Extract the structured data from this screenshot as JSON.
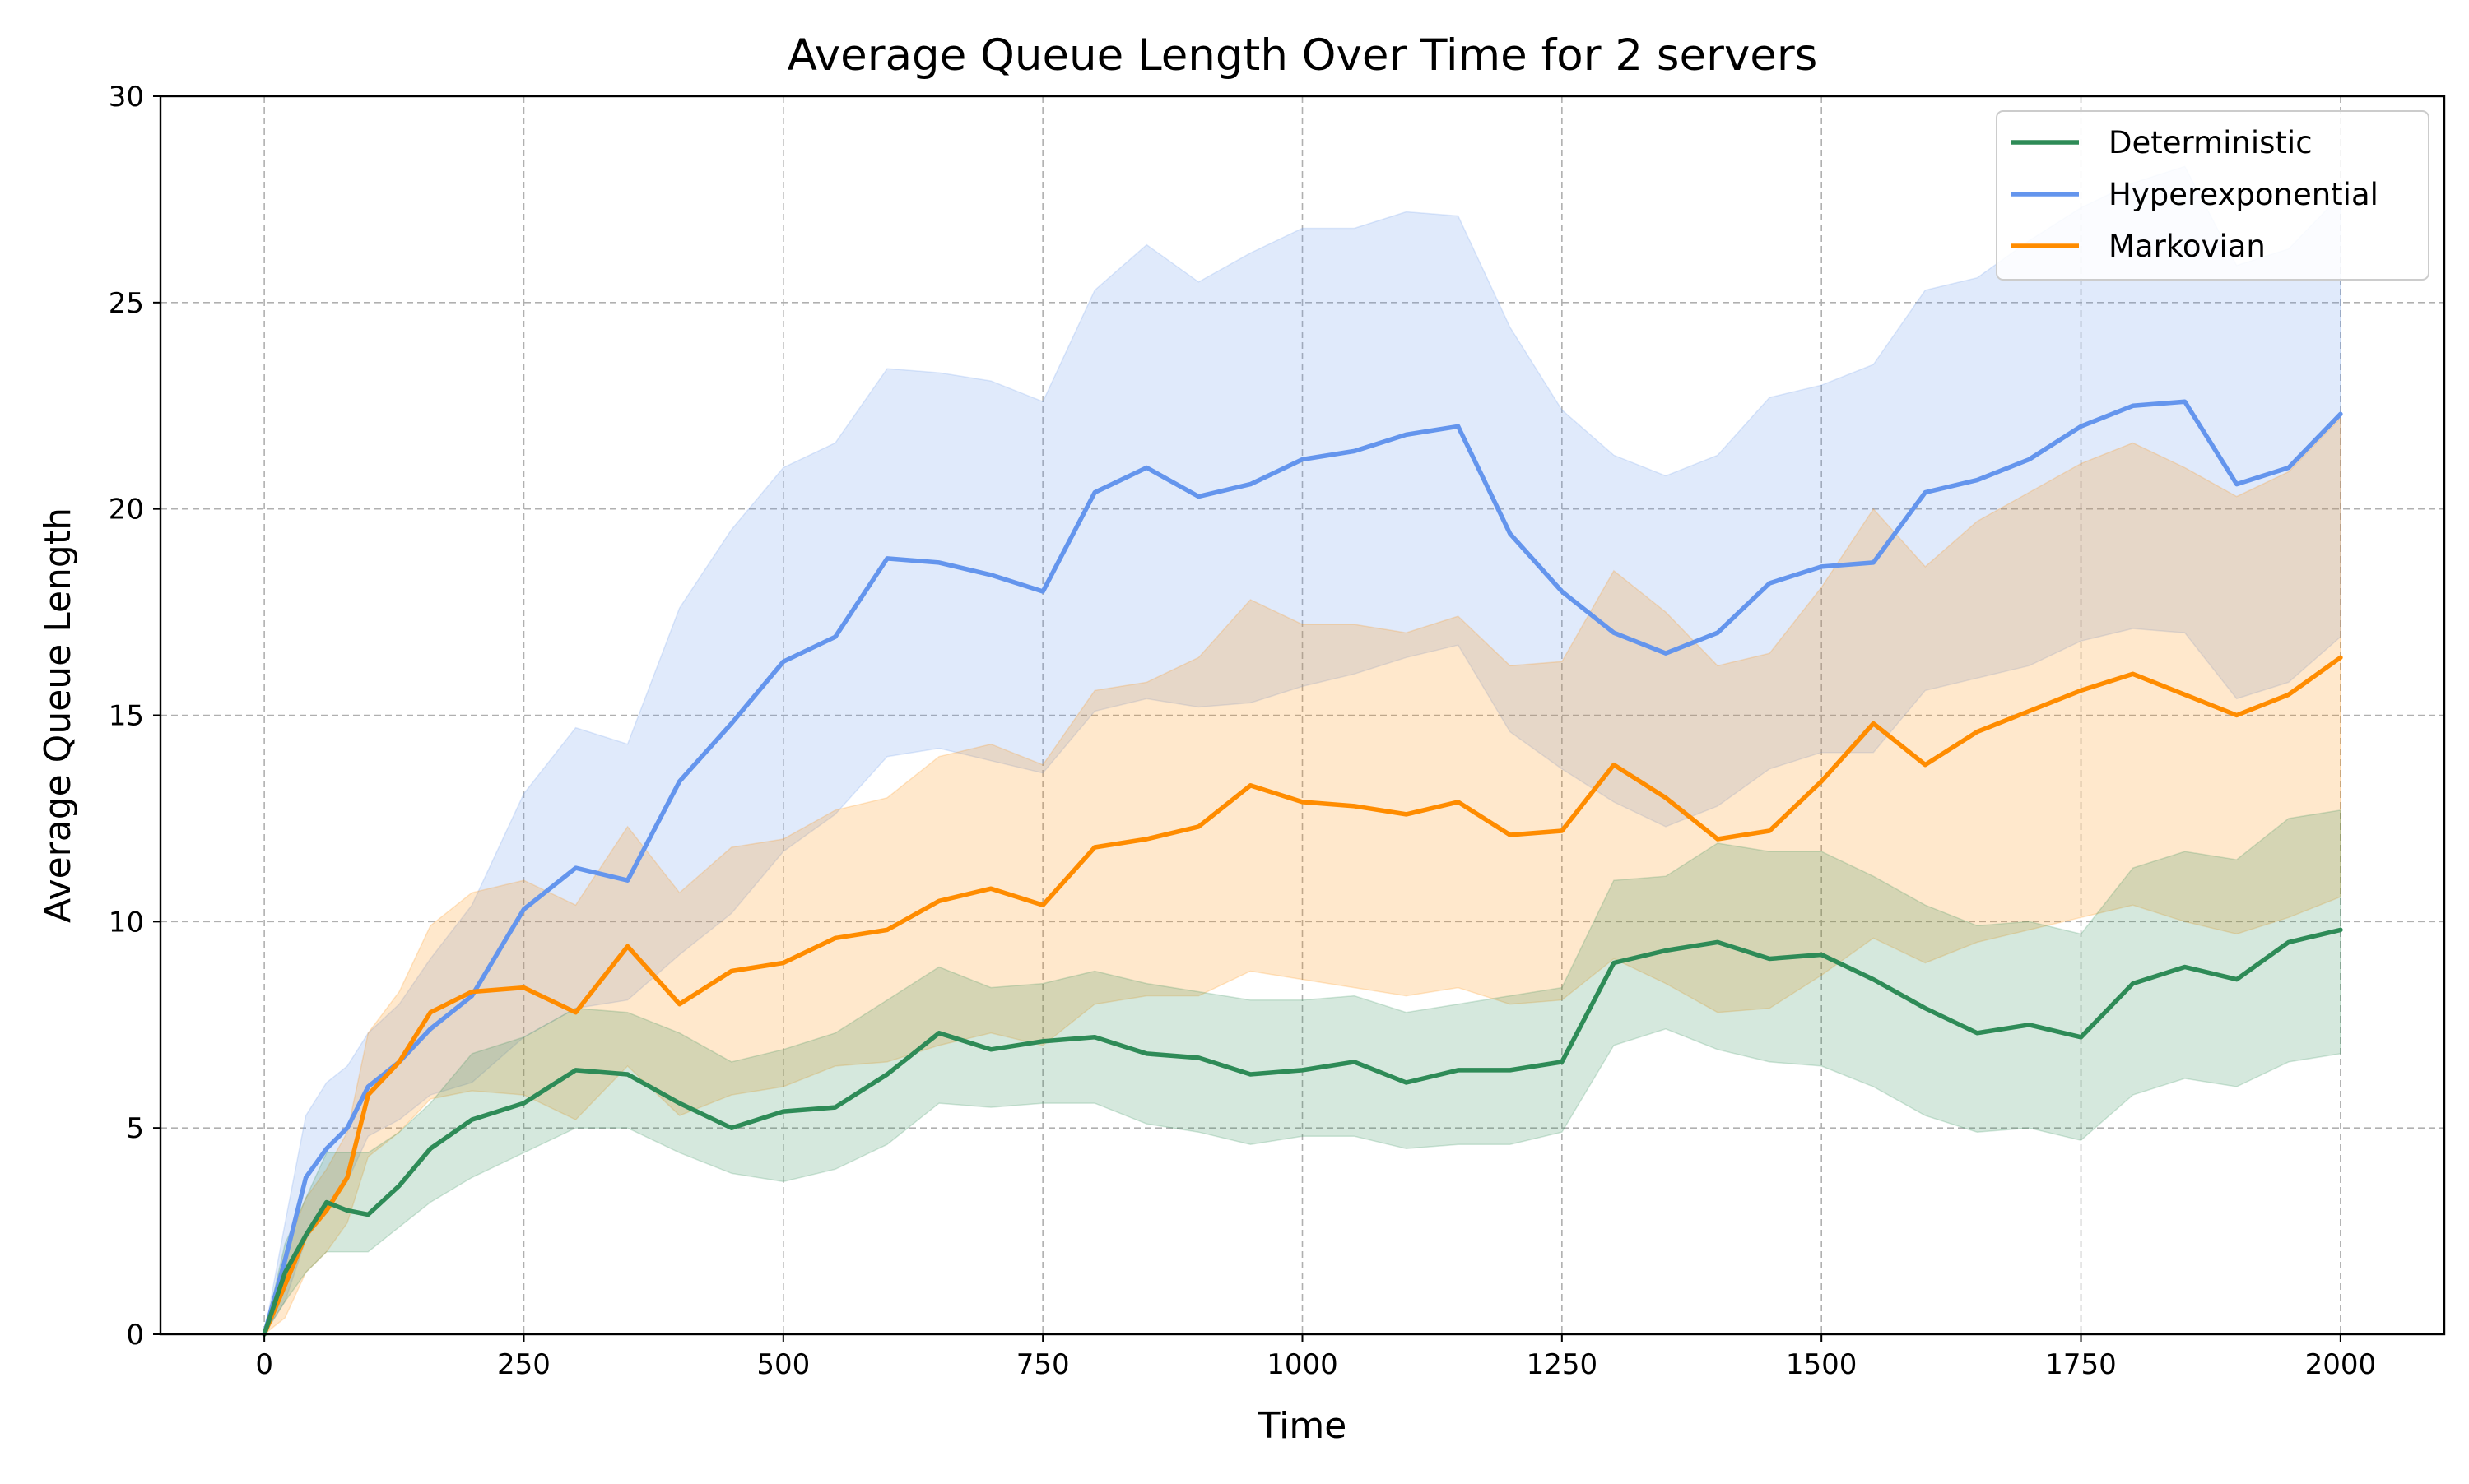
{
  "chart_data": {
    "type": "line",
    "title": "Average Queue Length Over Time for 2 servers",
    "xlabel": "Time",
    "ylabel": "Average Queue Length",
    "xlim": [
      -100,
      2100
    ],
    "ylim": [
      0,
      30
    ],
    "xticks": [
      0,
      250,
      500,
      750,
      1000,
      1250,
      1500,
      1750,
      2000
    ],
    "yticks": [
      0,
      5,
      10,
      15,
      20,
      25,
      30
    ],
    "grid": true,
    "grid_style": "dashed",
    "legend_position": "top-right",
    "x": [
      0,
      20,
      40,
      60,
      80,
      100,
      130,
      160,
      200,
      250,
      300,
      350,
      400,
      450,
      500,
      550,
      600,
      650,
      700,
      750,
      800,
      850,
      900,
      950,
      1000,
      1050,
      1100,
      1150,
      1200,
      1250,
      1300,
      1350,
      1400,
      1450,
      1500,
      1550,
      1600,
      1650,
      1700,
      1750,
      1800,
      1850,
      1900,
      1950,
      2000
    ],
    "series": [
      {
        "name": "Deterministic",
        "color": "#2e8b57",
        "values": [
          0,
          1.5,
          2.4,
          3.2,
          3.0,
          2.9,
          3.6,
          4.5,
          5.2,
          5.6,
          6.4,
          6.3,
          5.6,
          5.0,
          5.4,
          5.5,
          6.3,
          7.3,
          6.9,
          7.1,
          7.2,
          6.8,
          6.7,
          6.3,
          6.4,
          6.6,
          6.1,
          6.4,
          6.4,
          6.6,
          9.0,
          9.3,
          9.5,
          9.1,
          9.2,
          8.6,
          7.9,
          7.3,
          7.5,
          7.2,
          8.5,
          8.9,
          8.6,
          9.5,
          9.8
        ],
        "lower": [
          0,
          0.8,
          1.5,
          2.0,
          2.0,
          2.0,
          2.6,
          3.2,
          3.8,
          4.4,
          5.0,
          5.0,
          4.4,
          3.9,
          3.7,
          4.0,
          4.6,
          5.6,
          5.5,
          5.6,
          5.6,
          5.1,
          4.9,
          4.6,
          4.8,
          4.8,
          4.5,
          4.6,
          4.6,
          4.9,
          7.0,
          7.4,
          6.9,
          6.6,
          6.5,
          6.0,
          5.3,
          4.9,
          5.0,
          4.7,
          5.8,
          6.2,
          6.0,
          6.6,
          6.8
        ],
        "upper": [
          0,
          2.2,
          3.3,
          4.4,
          4.4,
          4.4,
          4.9,
          5.6,
          6.8,
          7.2,
          7.9,
          7.8,
          7.3,
          6.6,
          6.9,
          7.3,
          8.1,
          8.9,
          8.4,
          8.5,
          8.8,
          8.5,
          8.3,
          8.1,
          8.1,
          8.2,
          7.8,
          8.0,
          8.2,
          8.4,
          11.0,
          11.1,
          11.9,
          11.7,
          11.7,
          11.1,
          10.4,
          9.9,
          10.0,
          9.7,
          11.3,
          11.7,
          11.5,
          12.5,
          12.7
        ]
      },
      {
        "name": "Hyperexponential",
        "color": "#6495ed",
        "values": [
          0,
          1.8,
          3.8,
          4.5,
          5.0,
          6.0,
          6.6,
          7.4,
          8.2,
          10.3,
          11.3,
          11.0,
          13.4,
          14.8,
          16.3,
          16.9,
          18.8,
          18.7,
          18.4,
          18.0,
          20.4,
          21.0,
          20.3,
          20.6,
          21.2,
          21.4,
          21.8,
          22.0,
          19.4,
          18.0,
          17.0,
          16.5,
          17.0,
          18.2,
          18.6,
          18.7,
          20.4,
          20.7,
          21.2,
          22.0,
          22.5,
          22.6,
          20.6,
          21.0,
          22.3
        ],
        "lower": [
          0,
          0.8,
          2.3,
          3.0,
          3.7,
          4.8,
          5.2,
          5.8,
          6.1,
          7.2,
          7.9,
          8.1,
          9.2,
          10.2,
          11.7,
          12.6,
          14.0,
          14.2,
          13.9,
          13.6,
          15.1,
          15.4,
          15.2,
          15.3,
          15.7,
          16.0,
          16.4,
          16.7,
          14.6,
          13.7,
          12.9,
          12.3,
          12.8,
          13.7,
          14.1,
          14.1,
          15.6,
          15.9,
          16.2,
          16.8,
          17.1,
          17.0,
          15.4,
          15.8,
          16.9
        ],
        "upper": [
          0,
          2.7,
          5.3,
          6.1,
          6.5,
          7.3,
          8.0,
          9.1,
          10.4,
          13.1,
          14.7,
          14.3,
          17.6,
          19.5,
          21.0,
          21.6,
          23.4,
          23.3,
          23.1,
          22.6,
          25.3,
          26.4,
          25.5,
          26.2,
          26.8,
          26.8,
          27.2,
          27.1,
          24.4,
          22.4,
          21.3,
          20.8,
          21.3,
          22.7,
          23.0,
          23.5,
          25.3,
          25.6,
          26.5,
          27.3,
          27.9,
          28.3,
          25.9,
          26.3,
          27.6
        ]
      },
      {
        "name": "Markovian",
        "color": "#ff8c00",
        "values": [
          0,
          1.2,
          2.4,
          3.0,
          3.8,
          5.8,
          6.6,
          7.8,
          8.3,
          8.4,
          7.8,
          9.4,
          8.0,
          8.8,
          9.0,
          9.6,
          9.8,
          10.5,
          10.8,
          10.4,
          11.8,
          12.0,
          12.3,
          13.3,
          12.9,
          12.8,
          12.6,
          12.9,
          12.1,
          12.2,
          13.8,
          13.0,
          12.0,
          12.2,
          13.4,
          14.8,
          13.8,
          14.6,
          15.1,
          15.6,
          16.0,
          15.5,
          15.0,
          15.5,
          16.4
        ],
        "lower": [
          0,
          0.4,
          1.5,
          2.0,
          2.7,
          4.3,
          4.9,
          5.7,
          5.9,
          5.8,
          5.2,
          6.5,
          5.3,
          5.8,
          6.0,
          6.5,
          6.6,
          7.0,
          7.3,
          7.0,
          8.0,
          8.2,
          8.2,
          8.8,
          8.6,
          8.4,
          8.2,
          8.4,
          8.0,
          8.1,
          9.1,
          8.5,
          7.8,
          7.9,
          8.7,
          9.6,
          9.0,
          9.5,
          9.8,
          10.1,
          10.4,
          10.0,
          9.7,
          10.1,
          10.6
        ],
        "upper": [
          0,
          2.0,
          3.3,
          4.0,
          4.9,
          7.3,
          8.3,
          9.9,
          10.7,
          11.0,
          10.4,
          12.3,
          10.7,
          11.8,
          12.0,
          12.7,
          13.0,
          14.0,
          14.3,
          13.8,
          15.6,
          15.8,
          16.4,
          17.8,
          17.2,
          17.2,
          17.0,
          17.4,
          16.2,
          16.3,
          18.5,
          17.5,
          16.2,
          16.5,
          18.1,
          20.0,
          18.6,
          19.7,
          20.4,
          21.1,
          21.6,
          21.0,
          20.3,
          20.9,
          22.2
        ]
      }
    ]
  }
}
